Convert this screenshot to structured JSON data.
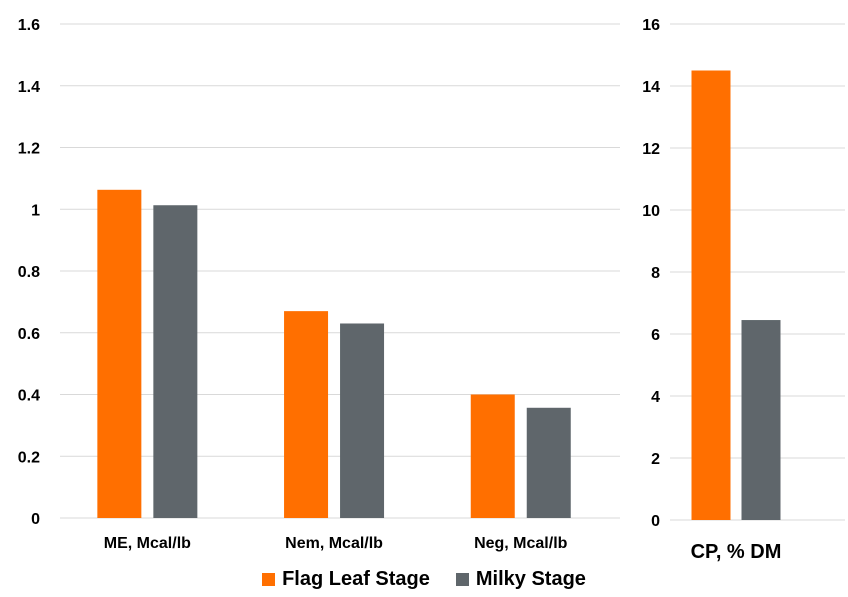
{
  "colors": {
    "flag": "#FF6F00",
    "milky": "#5F666B",
    "grid": "#D9D9D9"
  },
  "legend": {
    "flag": "Flag Leaf Stage",
    "milky": "Milky Stage"
  },
  "chart_data": [
    {
      "type": "bar",
      "categories": [
        "ME, Mcal/lb",
        "Nem, Mcal/lb",
        "Neg, Mcal/lb"
      ],
      "series": [
        {
          "name": "Flag Leaf Stage",
          "values": [
            1.063,
            0.67,
            0.4
          ]
        },
        {
          "name": "Milky Stage",
          "values": [
            1.013,
            0.63,
            0.357
          ]
        }
      ],
      "ylim": [
        0,
        1.6
      ],
      "yticks": [
        "0",
        "0.2",
        "0.4",
        "0.6",
        "0.8",
        "1",
        "1.2",
        "1.4",
        "1.6"
      ],
      "grid": true
    },
    {
      "type": "bar",
      "categories": [
        "CP, % DM"
      ],
      "series": [
        {
          "name": "Flag Leaf Stage",
          "values": [
            14.5
          ]
        },
        {
          "name": "Milky Stage",
          "values": [
            6.45
          ]
        }
      ],
      "ylim": [
        0,
        16
      ],
      "yticks": [
        "0",
        "2",
        "4",
        "6",
        "8",
        "10",
        "12",
        "14",
        "16"
      ],
      "grid": true
    }
  ]
}
